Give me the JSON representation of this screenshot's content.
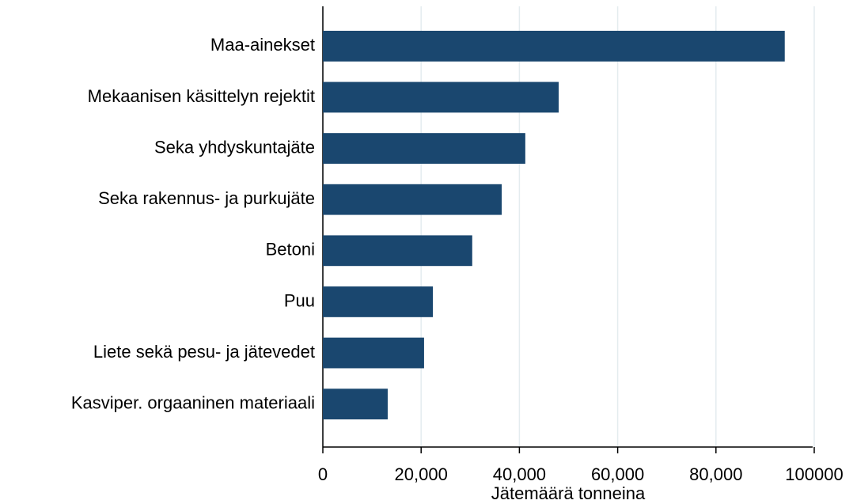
{
  "chart_data": {
    "type": "bar",
    "orientation": "horizontal",
    "x_label": "Jätemäärä tonneina",
    "categories": [
      "Maa-ainekset",
      "Mekaanisen käsittelyn rejektit",
      "Seka yhdyskuntajäte",
      "Seka rakennus- ja purkujäte",
      "Betoni",
      "Puu",
      "Liete sekä pesu- ja jätevedet",
      "Kasviper. orgaaninen materiaali"
    ],
    "values": [
      94000,
      48000,
      41200,
      36400,
      30400,
      22400,
      20600,
      13200
    ],
    "color": "#1a476f",
    "xlim": [
      0,
      100000
    ],
    "xticks": [
      0,
      {
        "value": 20000,
        "label": "20,000"
      },
      {
        "value": 40000,
        "label": "40,000"
      },
      {
        "value": 60000,
        "label": "60,000"
      },
      {
        "value": 80000,
        "label": "80,000"
      },
      100000
    ],
    "grid": true
  }
}
